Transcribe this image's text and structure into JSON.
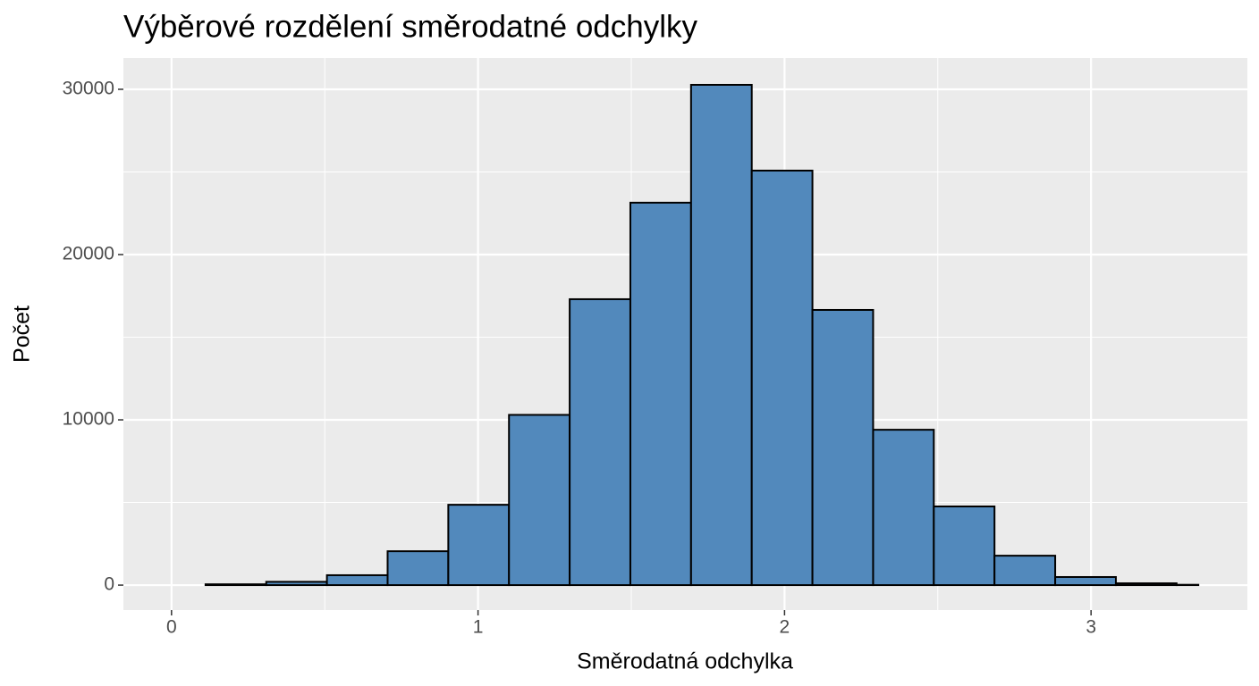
{
  "chart_data": {
    "type": "histogram",
    "title": "Výběrové rozdělení směrodatné odchylky",
    "x_label": "Směrodatná odchylka",
    "y_label": "Počet",
    "bins": [
      0,
      0.111,
      0.309,
      0.507,
      0.705,
      0.903,
      1.101,
      1.299,
      1.497,
      1.695,
      1.893,
      2.091,
      2.289,
      2.487,
      2.685,
      2.883,
      3.081,
      3.279,
      3.35
    ],
    "values": [
      0,
      50,
      200,
      600,
      2050,
      4860,
      10300,
      17300,
      23140,
      30270,
      25080,
      16650,
      9400,
      4760,
      1780,
      490,
      110,
      20
    ],
    "color": "#5289bc",
    "edge_color": "#000000",
    "xlim": [
      -0.157,
      3.51
    ],
    "ylim": [
      -1510,
      31890
    ],
    "xticks": [
      0,
      1,
      2,
      3
    ],
    "yticks": [
      0,
      10000,
      20000,
      30000
    ],
    "minor_xticks": [
      0.5,
      1.5,
      2.5
    ],
    "minor_yticks": [
      5000,
      15000,
      25000
    ],
    "grid": true
  }
}
